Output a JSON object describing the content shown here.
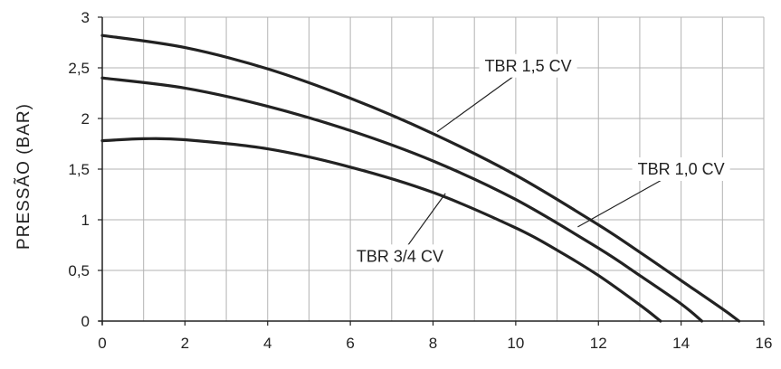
{
  "chart_data": {
    "type": "line",
    "title": "",
    "xlabel": "",
    "ylabel": "PRESSÃO  (BAR)",
    "xlim": [
      0,
      16
    ],
    "ylim": [
      0,
      3
    ],
    "x_ticks": [
      0,
      2,
      4,
      6,
      8,
      10,
      12,
      14,
      16
    ],
    "y_ticks": [
      0,
      0.5,
      1,
      1.5,
      2,
      2.5,
      3
    ],
    "x_tick_labels": [
      "0",
      "2",
      "4",
      "6",
      "8",
      "10",
      "12",
      "14",
      "16"
    ],
    "y_tick_labels": [
      "0",
      "0,5",
      "1",
      "1,5",
      "2",
      "2,5",
      "3"
    ],
    "grid": true,
    "line_color": "#222222",
    "grid_color": "#b3b3b3",
    "series": [
      {
        "name": "TBR 1,5 CV",
        "x": [
          0,
          2,
          4,
          6,
          8,
          10,
          12,
          13,
          14,
          15,
          15.4
        ],
        "y": [
          2.82,
          2.7,
          2.49,
          2.2,
          1.85,
          1.44,
          0.95,
          0.68,
          0.4,
          0.12,
          0
        ]
      },
      {
        "name": "TBR 1,0 CV",
        "x": [
          0,
          2,
          4,
          6,
          8,
          10,
          12,
          13,
          14,
          14.5
        ],
        "y": [
          2.4,
          2.3,
          2.12,
          1.88,
          1.58,
          1.2,
          0.72,
          0.45,
          0.17,
          0
        ]
      },
      {
        "name": "TBR 3/4 CV",
        "x": [
          0,
          1,
          2,
          4,
          6,
          8,
          10,
          11,
          12,
          13,
          13.5
        ],
        "y": [
          1.78,
          1.8,
          1.79,
          1.7,
          1.52,
          1.27,
          0.92,
          0.7,
          0.45,
          0.16,
          0
        ]
      }
    ],
    "annotations": [
      {
        "series": "TBR 1,5 CV",
        "text": "TBR 1,5 CV",
        "label_at": [
          10.3,
          2.52
        ],
        "points_to": [
          8.1,
          1.87
        ]
      },
      {
        "series": "TBR 1,0 CV",
        "text": "TBR 1,0 CV",
        "label_at": [
          14.0,
          1.5
        ],
        "points_to": [
          11.5,
          0.93
        ]
      },
      {
        "series": "TBR 3/4 CV",
        "text": "TBR 3/4 CV",
        "label_at": [
          7.2,
          0.64
        ],
        "points_to": [
          8.3,
          1.26
        ]
      }
    ]
  }
}
